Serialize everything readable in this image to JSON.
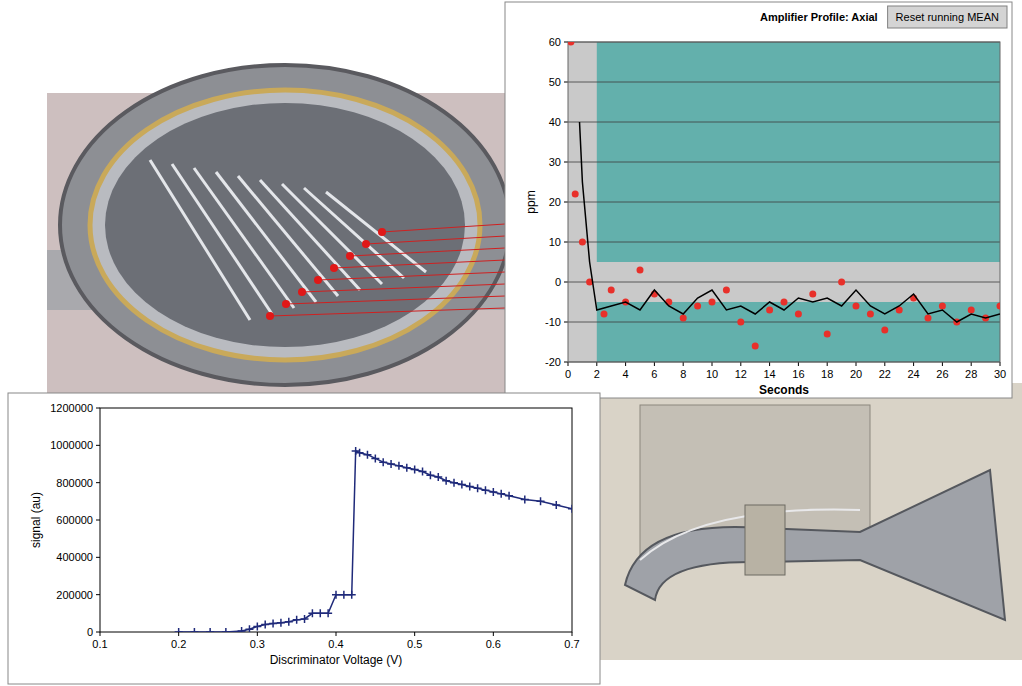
{
  "chart_data": [
    {
      "type": "scatter",
      "title": "Amplifier Profile: Axial",
      "annotations": [
        "Reset running MEAN"
      ],
      "x_label": "Seconds",
      "y_label": "ppm",
      "xlim": [
        0,
        30
      ],
      "ylim": [
        -20,
        60
      ],
      "xticks": [
        0,
        2,
        4,
        6,
        8,
        10,
        12,
        14,
        16,
        18,
        20,
        22,
        24,
        26,
        28,
        30
      ],
      "yticks": [
        -20,
        -10,
        0,
        10,
        20,
        30,
        40,
        50,
        60
      ],
      "grid": true,
      "tolerance_band": {
        "low": -5,
        "high": 5,
        "x_start": 2
      },
      "series": [
        {
          "type": "scatter",
          "color": "#e8302a",
          "marker": "circle",
          "x": [
            0.2,
            0.5,
            1,
            1.5,
            2.5,
            3,
            4,
            5,
            6,
            7,
            8,
            9,
            10,
            11,
            12,
            13,
            14,
            15,
            16,
            17,
            18,
            19,
            20,
            21,
            22,
            23,
            24,
            25,
            26,
            27,
            28,
            29,
            30
          ],
          "values": [
            60,
            22,
            10,
            0,
            -8,
            -2,
            -5,
            3,
            -3,
            -5,
            -9,
            -6,
            -5,
            -2,
            -10,
            -16,
            -7,
            -5,
            -8,
            -3,
            -13,
            0,
            -6,
            -8,
            -12,
            -7,
            -4,
            -9,
            -6,
            -10,
            -7,
            -9,
            -6
          ]
        },
        {
          "type": "line",
          "color": "#000000",
          "line_style": "solid",
          "x": [
            0.8,
            1,
            1.5,
            2,
            3,
            4,
            5,
            6,
            7,
            8,
            9,
            10,
            11,
            12,
            13,
            14,
            15,
            16,
            17,
            18,
            19,
            20,
            21,
            22,
            23,
            24,
            25,
            26,
            27,
            28,
            29,
            30
          ],
          "values": [
            40,
            25,
            5,
            -7,
            -6,
            -5,
            -7,
            -2,
            -6,
            -8,
            -4,
            -2,
            -7,
            -6,
            -8,
            -5,
            -7,
            -4,
            -5,
            -4,
            -6,
            -2,
            -6,
            -8,
            -6,
            -3,
            -8,
            -7,
            -10,
            -8,
            -9,
            -8
          ]
        }
      ]
    },
    {
      "type": "line",
      "x_label": "Discriminator Voltage (V)",
      "y_label": "signal (au)",
      "xlim": [
        0.1,
        0.7
      ],
      "ylim": [
        0,
        1200000
      ],
      "xticks": [
        0.1,
        0.2,
        0.3,
        0.4,
        0.5,
        0.6,
        0.7
      ],
      "yticks": [
        0,
        200000,
        400000,
        600000,
        800000,
        1000000,
        1200000
      ],
      "grid": false,
      "series": [
        {
          "type": "line",
          "color": "#1f2a7a",
          "marker": "plus",
          "line_style": "solid",
          "x": [
            0.2,
            0.22,
            0.24,
            0.26,
            0.28,
            0.29,
            0.3,
            0.31,
            0.32,
            0.33,
            0.34,
            0.35,
            0.36,
            0.37,
            0.38,
            0.39,
            0.4,
            0.41,
            0.42,
            0.425,
            0.43,
            0.44,
            0.45,
            0.46,
            0.47,
            0.48,
            0.49,
            0.5,
            0.51,
            0.52,
            0.53,
            0.54,
            0.55,
            0.56,
            0.57,
            0.58,
            0.59,
            0.6,
            0.61,
            0.62,
            0.64,
            0.66,
            0.68,
            0.7
          ],
          "values": [
            0,
            0,
            0,
            0,
            5000,
            15000,
            30000,
            40000,
            45000,
            50000,
            55000,
            65000,
            70000,
            100000,
            100000,
            100000,
            200000,
            200000,
            200000,
            970000,
            960000,
            950000,
            930000,
            910000,
            900000,
            890000,
            880000,
            870000,
            860000,
            840000,
            830000,
            810000,
            800000,
            790000,
            780000,
            770000,
            760000,
            750000,
            740000,
            730000,
            710000,
            700000,
            680000,
            660000
          ]
        }
      ]
    }
  ]
}
